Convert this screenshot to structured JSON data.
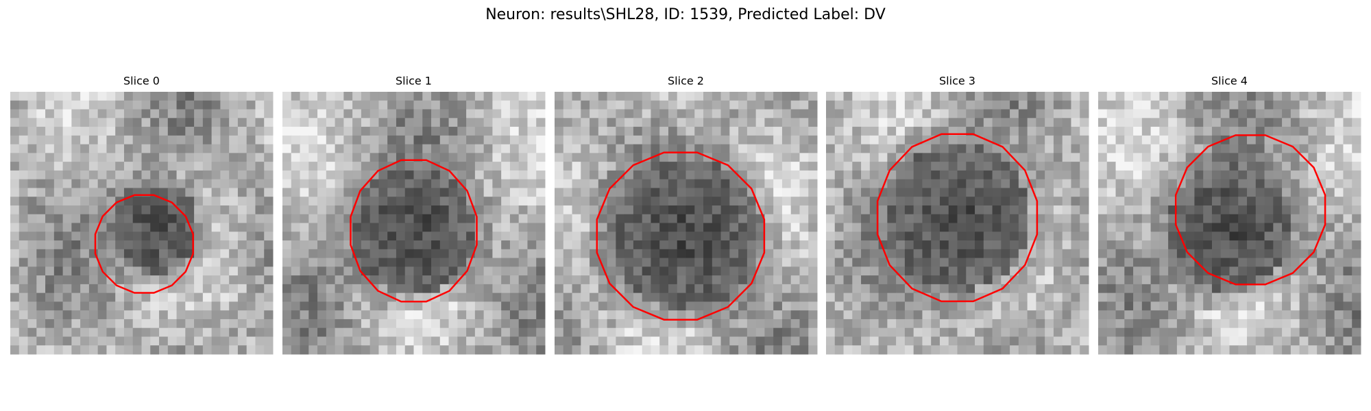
{
  "title": "Neuron: results\\SHL28, ID: 1539, Predicted Label: DV",
  "panels": [
    {
      "title": "Slice 0"
    },
    {
      "title": "Slice 1"
    },
    {
      "title": "Slice 2"
    },
    {
      "title": "Slice 3"
    },
    {
      "title": "Slice 4"
    }
  ]
}
